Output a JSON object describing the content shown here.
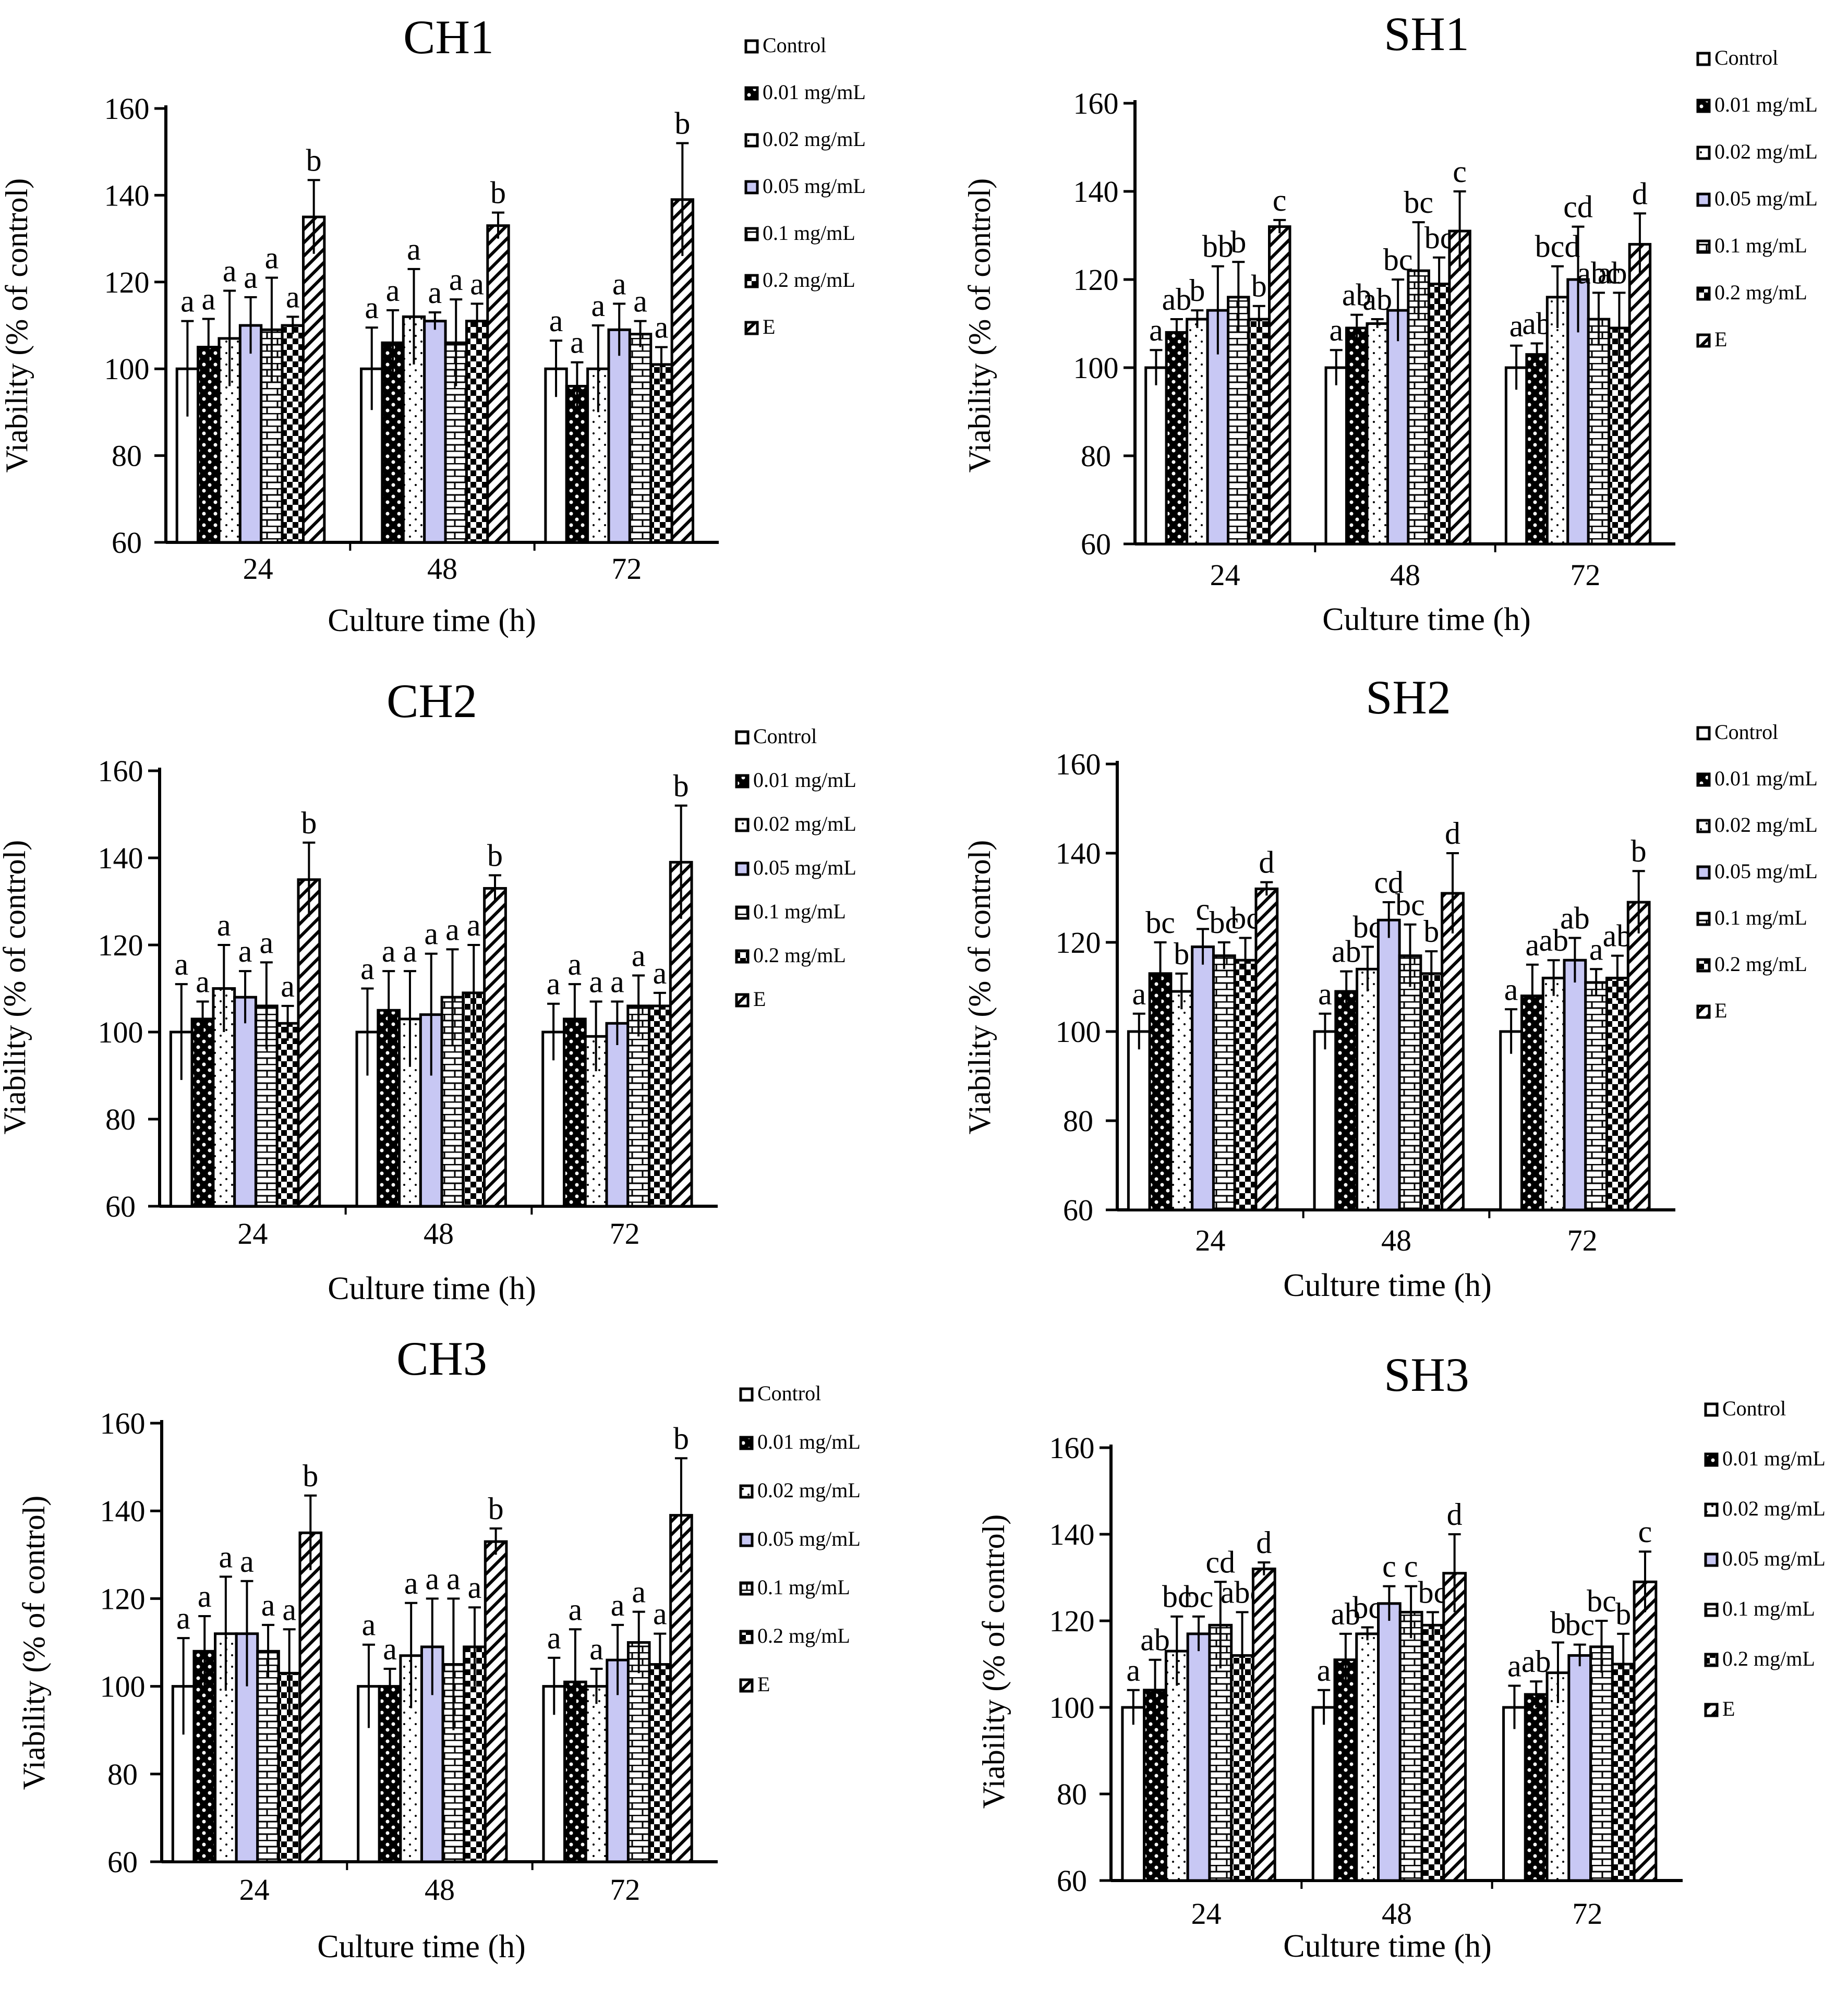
{
  "chart_data": [
    {
      "type": "bar",
      "title": "CH1",
      "xlabel": "Culture time (h)",
      "ylabel": "Viability (% of control)",
      "ylim": [
        60,
        160
      ],
      "yticks": [
        "60",
        "80",
        "100",
        "120",
        "140",
        "160"
      ],
      "categories": [
        "24",
        "48",
        "72"
      ],
      "legend": [
        "Control",
        "0.01 mg/mL",
        "0.02 mg/mL",
        "0.05 mg/mL",
        "0.1 mg/mL",
        "0.2 mg/mL",
        "E"
      ],
      "legend_position": "right",
      "series": [
        {
          "name": "Control",
          "values": [
            100,
            100,
            100
          ],
          "err": [
            11,
            9.5,
            6.5
          ],
          "labels": [
            "a",
            "a",
            "a"
          ]
        },
        {
          "name": "0.01 mg/mL",
          "values": [
            105,
            106,
            96
          ],
          "err": [
            6.5,
            7.5,
            5.5
          ],
          "labels": [
            "a",
            "a",
            "a"
          ]
        },
        {
          "name": "0.02 mg/mL",
          "values": [
            107,
            112,
            100
          ],
          "err": [
            11,
            11,
            10
          ],
          "labels": [
            "a",
            "a",
            "a"
          ]
        },
        {
          "name": "0.05 mg/mL",
          "values": [
            110,
            111,
            109
          ],
          "err": [
            6.5,
            2,
            6
          ],
          "labels": [
            "a",
            "a",
            "a"
          ]
        },
        {
          "name": "0.1 mg/mL",
          "values": [
            109,
            106,
            108
          ],
          "err": [
            12,
            10,
            3
          ],
          "labels": [
            "a",
            "a",
            "a"
          ]
        },
        {
          "name": "0.2 mg/mL",
          "values": [
            110,
            111,
            101
          ],
          "err": [
            2,
            4,
            4
          ],
          "labels": [
            "a",
            "a",
            "a"
          ]
        },
        {
          "name": "E",
          "values": [
            135,
            133,
            139
          ],
          "err": [
            8.5,
            3,
            13
          ],
          "labels": [
            "b",
            "b",
            "b"
          ]
        }
      ]
    },
    {
      "type": "bar",
      "title": "SH1",
      "xlabel": "Culture time (h)",
      "ylabel": "Viability (% of control)",
      "ylim": [
        60,
        160
      ],
      "yticks": [
        "60",
        "80",
        "100",
        "120",
        "140",
        "160"
      ],
      "categories": [
        "24",
        "48",
        "72"
      ],
      "legend": [
        "Control",
        "0.01 mg/mL",
        "0.02 mg/mL",
        "0.05 mg/mL",
        "0.1 mg/mL",
        "0.2 mg/mL",
        "E"
      ],
      "legend_position": "right",
      "series": [
        {
          "name": "Control",
          "values": [
            100,
            100,
            100
          ],
          "err": [
            4,
            4,
            5
          ],
          "labels": [
            "a",
            "a",
            "a"
          ]
        },
        {
          "name": "0.01 mg/mL",
          "values": [
            108,
            109,
            103
          ],
          "err": [
            3,
            3,
            2.5
          ],
          "labels": [
            "ab",
            "ab",
            "ab"
          ]
        },
        {
          "name": "0.02 mg/mL",
          "values": [
            111,
            110,
            116
          ],
          "err": [
            2,
            1,
            7
          ],
          "labels": [
            "b",
            "ab",
            "bcd"
          ]
        },
        {
          "name": "0.05 mg/mL",
          "values": [
            113,
            113,
            120
          ],
          "err": [
            10,
            7,
            12
          ],
          "labels": [
            "bb",
            "bc",
            "cd"
          ]
        },
        {
          "name": "0.1 mg/mL",
          "values": [
            116,
            122,
            111
          ],
          "err": [
            8,
            11,
            6
          ],
          "labels": [
            "b",
            "bc",
            "abc"
          ]
        },
        {
          "name": "0.2 mg/mL",
          "values": [
            111,
            119,
            109
          ],
          "err": [
            3,
            6,
            8
          ],
          "labels": [
            "b",
            "bc",
            "abc"
          ]
        },
        {
          "name": "E",
          "values": [
            132,
            131,
            128
          ],
          "err": [
            1.5,
            9,
            7
          ],
          "labels": [
            "c",
            "c",
            "d"
          ]
        }
      ]
    },
    {
      "type": "bar",
      "title": "CH2",
      "xlabel": "Culture time (h)",
      "ylabel": "Viability (% of control)",
      "ylim": [
        60,
        160
      ],
      "yticks": [
        "60",
        "80",
        "100",
        "120",
        "140",
        "160"
      ],
      "categories": [
        "24",
        "48",
        "72"
      ],
      "legend": [
        "Control",
        "0.01 mg/mL",
        "0.02 mg/mL",
        "0.05 mg/mL",
        "0.1 mg/mL",
        "0.2 mg/mL",
        "E"
      ],
      "legend_position": "right",
      "series": [
        {
          "name": "Control",
          "values": [
            100,
            100,
            100
          ],
          "err": [
            11,
            10,
            6.5
          ],
          "labels": [
            "a",
            "a",
            "a"
          ]
        },
        {
          "name": "0.01 mg/mL",
          "values": [
            103,
            105,
            103
          ],
          "err": [
            4,
            9,
            8
          ],
          "labels": [
            "a",
            "a",
            "a"
          ]
        },
        {
          "name": "0.02 mg/mL",
          "values": [
            110,
            103,
            99
          ],
          "err": [
            10,
            11,
            8
          ],
          "labels": [
            "a",
            "a",
            "a"
          ]
        },
        {
          "name": "0.05 mg/mL",
          "values": [
            108,
            104,
            102
          ],
          "err": [
            6,
            14,
            5
          ],
          "labels": [
            "a",
            "a",
            "a"
          ]
        },
        {
          "name": "0.1 mg/mL",
          "values": [
            106,
            108,
            106
          ],
          "err": [
            10,
            11,
            7
          ],
          "labels": [
            "a",
            "a",
            "a"
          ]
        },
        {
          "name": "0.2 mg/mL",
          "values": [
            102,
            109,
            106
          ],
          "err": [
            4,
            11,
            3
          ],
          "labels": [
            "a",
            "a",
            "a"
          ]
        },
        {
          "name": "E",
          "values": [
            135,
            133,
            139
          ],
          "err": [
            8.5,
            3,
            13
          ],
          "labels": [
            "b",
            "b",
            "b"
          ]
        }
      ]
    },
    {
      "type": "bar",
      "title": "SH2",
      "xlabel": "Culture time (h)",
      "ylabel": "Viability (% of control)",
      "ylim": [
        60,
        160
      ],
      "yticks": [
        "60",
        "80",
        "100",
        "120",
        "140",
        "160"
      ],
      "categories": [
        "24",
        "48",
        "72"
      ],
      "legend": [
        "Control",
        "0.01 mg/mL",
        "0.02 mg/mL",
        "0.05 mg/mL",
        "0.1 mg/mL",
        "0.2 mg/mL",
        "E"
      ],
      "legend_position": "right",
      "series": [
        {
          "name": "Control",
          "values": [
            100,
            100,
            100
          ],
          "err": [
            4,
            4,
            5
          ],
          "labels": [
            "a",
            "a",
            "a"
          ]
        },
        {
          "name": "0.01 mg/mL",
          "values": [
            113,
            109,
            108
          ],
          "err": [
            7,
            4.5,
            7
          ],
          "labels": [
            "bc",
            "ab",
            "a"
          ]
        },
        {
          "name": "0.02 mg/mL",
          "values": [
            109,
            114,
            112
          ],
          "err": [
            4,
            5,
            4
          ],
          "labels": [
            "b",
            "bc",
            "ab"
          ]
        },
        {
          "name": "0.05 mg/mL",
          "values": [
            119,
            125,
            116
          ],
          "err": [
            4,
            4,
            5
          ],
          "labels": [
            "c",
            "cd",
            "ab"
          ]
        },
        {
          "name": "0.1 mg/mL",
          "values": [
            117,
            117,
            111
          ],
          "err": [
            3,
            7,
            3
          ],
          "labels": [
            "bc",
            "bc",
            "a"
          ]
        },
        {
          "name": "0.2 mg/mL",
          "values": [
            116,
            113,
            112
          ],
          "err": [
            5,
            5,
            5
          ],
          "labels": [
            "bc",
            "b",
            "ab"
          ]
        },
        {
          "name": "E",
          "values": [
            132,
            131,
            129
          ],
          "err": [
            1.5,
            9,
            7
          ],
          "labels": [
            "d",
            "d",
            "b"
          ]
        }
      ]
    },
    {
      "type": "bar",
      "title": "CH3",
      "xlabel": "Culture time (h)",
      "ylabel": "Viability (% of control)",
      "ylim": [
        60,
        160
      ],
      "yticks": [
        "60",
        "80",
        "100",
        "120",
        "140",
        "160"
      ],
      "categories": [
        "24",
        "48",
        "72"
      ],
      "legend": [
        "Control",
        "0.01 mg/mL",
        "0.02 mg/mL",
        "0.05 mg/mL",
        "0.1 mg/mL",
        "0.2 mg/mL",
        "E"
      ],
      "legend_position": "right",
      "series": [
        {
          "name": "Control",
          "values": [
            100,
            100,
            100
          ],
          "err": [
            11,
            9.5,
            6.5
          ],
          "labels": [
            "a",
            "a",
            "a"
          ]
        },
        {
          "name": "0.01 mg/mL",
          "values": [
            108,
            100,
            101
          ],
          "err": [
            8,
            4,
            12
          ],
          "labels": [
            "a",
            "a",
            "a"
          ]
        },
        {
          "name": "0.02 mg/mL",
          "values": [
            112,
            107,
            100
          ],
          "err": [
            13,
            12,
            4
          ],
          "labels": [
            "a",
            "a",
            "a"
          ]
        },
        {
          "name": "0.05 mg/mL",
          "values": [
            112,
            109,
            106
          ],
          "err": [
            12,
            11,
            8
          ],
          "labels": [
            "a",
            "a",
            "a"
          ]
        },
        {
          "name": "0.1 mg/mL",
          "values": [
            108,
            105,
            110
          ],
          "err": [
            6,
            15,
            7
          ],
          "labels": [
            "a",
            "a",
            "a"
          ]
        },
        {
          "name": "0.2 mg/mL",
          "values": [
            103,
            109,
            105
          ],
          "err": [
            10,
            9,
            7
          ],
          "labels": [
            "a",
            "a",
            "a"
          ]
        },
        {
          "name": "E",
          "values": [
            135,
            133,
            139
          ],
          "err": [
            8.5,
            3,
            13
          ],
          "labels": [
            "b",
            "b",
            "b"
          ]
        }
      ]
    },
    {
      "type": "bar",
      "title": "SH3",
      "xlabel": "Culture time (h)",
      "ylabel": "Viability (% of control)",
      "ylim": [
        60,
        160
      ],
      "yticks": [
        "60",
        "80",
        "100",
        "120",
        "140",
        "160"
      ],
      "categories": [
        "24",
        "48",
        "72"
      ],
      "legend": [
        "Control",
        "0.01 mg/mL",
        "0.02 mg/mL",
        "0.05 mg/mL",
        "0.1 mg/mL",
        "0.2 mg/mL",
        "E"
      ],
      "legend_position": "right",
      "series": [
        {
          "name": "Control",
          "values": [
            100,
            100,
            100
          ],
          "err": [
            4,
            4,
            5
          ],
          "labels": [
            "a",
            "a",
            "a"
          ]
        },
        {
          "name": "0.01 mg/mL",
          "values": [
            104,
            111,
            103
          ],
          "err": [
            7,
            6,
            3
          ],
          "labels": [
            "ab",
            "ab",
            "ab"
          ]
        },
        {
          "name": "0.02 mg/mL",
          "values": [
            113,
            117,
            108
          ],
          "err": [
            8,
            1.5,
            7
          ],
          "labels": [
            "bc",
            "bc",
            "b"
          ]
        },
        {
          "name": "0.05 mg/mL",
          "values": [
            117,
            124,
            112
          ],
          "err": [
            4,
            4,
            2.5
          ],
          "labels": [
            "bc",
            "c",
            "bc"
          ]
        },
        {
          "name": "0.1 mg/mL",
          "values": [
            119,
            122,
            114
          ],
          "err": [
            10,
            6,
            6
          ],
          "labels": [
            "cd",
            "c",
            "bc"
          ]
        },
        {
          "name": "0.2 mg/mL",
          "values": [
            112,
            119,
            110
          ],
          "err": [
            10,
            3,
            7
          ],
          "labels": [
            "abc",
            "bc",
            "b"
          ]
        },
        {
          "name": "E",
          "values": [
            132,
            131,
            129
          ],
          "err": [
            1.5,
            9,
            7
          ],
          "labels": [
            "d",
            "d",
            "c"
          ]
        }
      ]
    }
  ]
}
